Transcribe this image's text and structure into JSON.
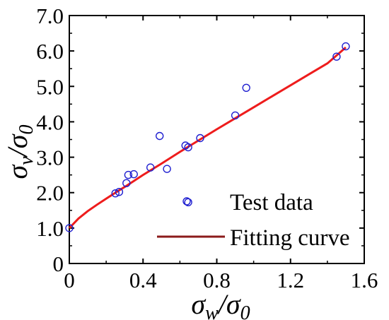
{
  "chart_data": {
    "type": "scatter",
    "title": "",
    "xlabel": {
      "base": "σ",
      "sub1": "w",
      "slash": "/",
      "base2": "σ",
      "sub2": "0"
    },
    "ylabel": {
      "base": "σ",
      "sub1": "v",
      "slash": "/",
      "base2": "σ",
      "sub2": "0"
    },
    "xlim": [
      0,
      1.6
    ],
    "ylim": [
      0,
      7.0
    ],
    "xticks": [
      0,
      0.4,
      0.8,
      1.2,
      1.6
    ],
    "xtick_labels": [
      "0",
      "0.4",
      "0.8",
      "1.2",
      "1.6"
    ],
    "yticks": [
      0,
      1.0,
      2.0,
      3.0,
      4.0,
      5.0,
      6.0,
      7.0
    ],
    "ytick_labels": [
      "0",
      "1.0",
      "2.0",
      "3.0",
      "4.0",
      "5.0",
      "6.0",
      "7.0"
    ],
    "grid": false,
    "legend_position": "bottom-right",
    "series": [
      {
        "name": "Test data",
        "kind": "scatter",
        "color": "#1f1fd0",
        "marker": "open-circle",
        "points": [
          [
            0.0,
            1.0
          ],
          [
            0.25,
            1.98
          ],
          [
            0.27,
            2.02
          ],
          [
            0.31,
            2.27
          ],
          [
            0.32,
            2.5
          ],
          [
            0.35,
            2.52
          ],
          [
            0.44,
            2.71
          ],
          [
            0.49,
            3.6
          ],
          [
            0.53,
            2.67
          ],
          [
            0.63,
            3.33
          ],
          [
            0.645,
            3.28
          ],
          [
            0.645,
            1.73
          ],
          [
            0.71,
            3.54
          ],
          [
            0.9,
            4.18
          ],
          [
            0.96,
            4.96
          ],
          [
            1.45,
            5.84
          ],
          [
            1.5,
            6.13
          ]
        ]
      },
      {
        "name": "Fitting curve",
        "kind": "line",
        "color": "#ee1c1c",
        "legend_color": "#8b1a1a",
        "points": [
          [
            0.0,
            1.0
          ],
          [
            0.05,
            1.27
          ],
          [
            0.1,
            1.48
          ],
          [
            0.15,
            1.66
          ],
          [
            0.2,
            1.83
          ],
          [
            0.25,
            2.0
          ],
          [
            0.3,
            2.16
          ],
          [
            0.35,
            2.33
          ],
          [
            0.4,
            2.5
          ],
          [
            0.5,
            2.82
          ],
          [
            0.6,
            3.15
          ],
          [
            0.7,
            3.47
          ],
          [
            0.8,
            3.79
          ],
          [
            0.9,
            4.1
          ],
          [
            1.0,
            4.41
          ],
          [
            1.1,
            4.72
          ],
          [
            1.2,
            5.03
          ],
          [
            1.3,
            5.34
          ],
          [
            1.4,
            5.65
          ],
          [
            1.5,
            6.1
          ]
        ]
      }
    ]
  }
}
